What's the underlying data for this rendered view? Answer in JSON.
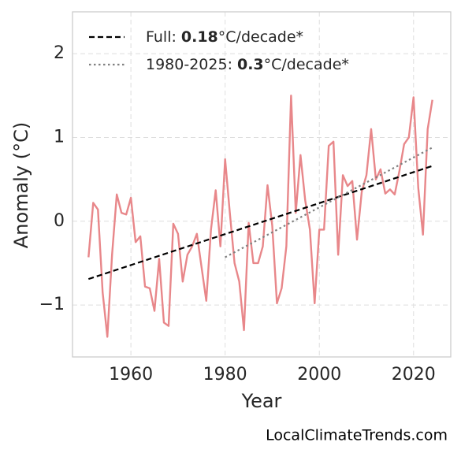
{
  "chart_data": {
    "type": "line",
    "xlabel": "Year",
    "ylabel": "Anomaly (°C)",
    "x": [
      1951,
      1952,
      1953,
      1954,
      1955,
      1956,
      1957,
      1958,
      1959,
      1960,
      1961,
      1962,
      1963,
      1964,
      1965,
      1966,
      1967,
      1968,
      1969,
      1970,
      1971,
      1972,
      1973,
      1974,
      1975,
      1976,
      1977,
      1978,
      1979,
      1980,
      1981,
      1982,
      1983,
      1984,
      1985,
      1986,
      1987,
      1988,
      1989,
      1990,
      1991,
      1992,
      1993,
      1994,
      1995,
      1996,
      1997,
      1998,
      1999,
      2000,
      2001,
      2002,
      2003,
      2004,
      2005,
      2006,
      2007,
      2008,
      2009,
      2010,
      2011,
      2012,
      2013,
      2014,
      2015,
      2016,
      2017,
      2018,
      2019,
      2020,
      2021,
      2022,
      2023,
      2024
    ],
    "series": [
      {
        "color": "#e8878a",
        "values": [
          -0.43,
          0.22,
          0.14,
          -0.85,
          -1.38,
          -0.4,
          0.32,
          0.1,
          0.08,
          0.28,
          -0.25,
          -0.18,
          -0.78,
          -0.8,
          -1.07,
          -0.45,
          -1.21,
          -1.25,
          -0.03,
          -0.15,
          -0.72,
          -0.4,
          -0.3,
          -0.15,
          -0.55,
          -0.95,
          -0.1,
          0.37,
          -0.3,
          0.74,
          0.1,
          -0.5,
          -0.72,
          -1.3,
          -0.02,
          -0.5,
          -0.5,
          -0.3,
          0.43,
          -0.05,
          -0.98,
          -0.8,
          -0.3,
          1.5,
          0.1,
          0.79,
          0.25,
          -0.1,
          -0.98,
          -0.1,
          -0.1,
          0.9,
          0.95,
          -0.4,
          0.55,
          0.42,
          0.48,
          -0.22,
          0.35,
          0.55,
          1.1,
          0.5,
          0.62,
          0.33,
          0.38,
          0.32,
          0.6,
          0.92,
          1.0,
          1.48,
          0.4,
          -0.16,
          1.1,
          1.45
        ]
      }
    ],
    "trends": [
      {
        "label": "Full:",
        "rate": 0.18,
        "unit": "°C/decade*",
        "x": [
          1951,
          2024
        ],
        "values": [
          -0.69,
          0.66
        ],
        "color": "#000000",
        "style": "dashed"
      },
      {
        "label": "1980-2025:",
        "rate": 0.3,
        "unit": "°C/decade*",
        "x": [
          1980,
          2024
        ],
        "values": [
          -0.43,
          0.88
        ],
        "color": "#808080",
        "style": "dotted"
      }
    ],
    "xlim": [
      1947.6,
      2027.9
    ],
    "ylim": [
      -1.62,
      2.5
    ],
    "xticks": [
      1960,
      1980,
      2000,
      2020
    ],
    "yticks": [
      {
        "value": -1,
        "label": "−1"
      },
      0,
      1,
      2
    ],
    "grid": true,
    "legend": "upper left",
    "source": "LocalClimateTrends.com"
  }
}
